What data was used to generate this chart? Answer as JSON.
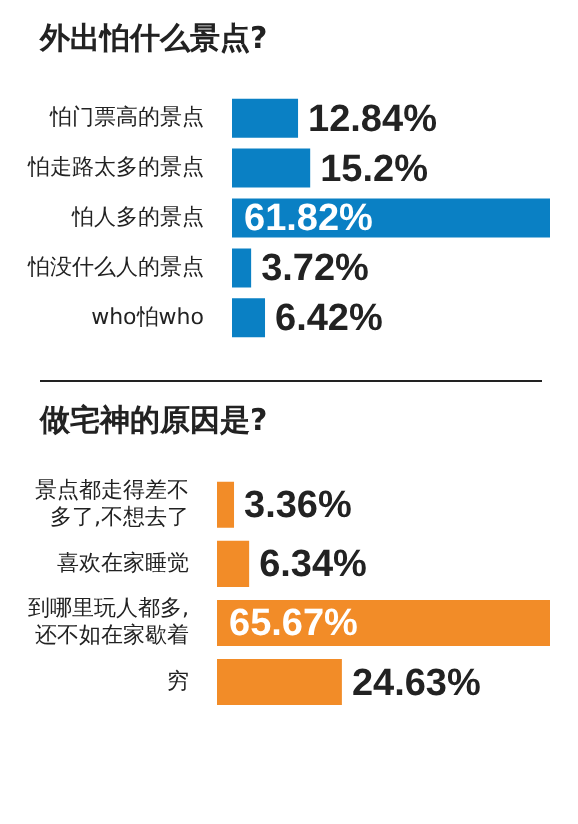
{
  "chart_data": [
    {
      "type": "bar",
      "orientation": "horizontal",
      "title": "外出怕什么景点?",
      "categories": [
        "怕门票高的景点",
        "怕走路太多的景点",
        "怕人多的景点",
        "怕没什么人的景点",
        "who怕who"
      ],
      "values": [
        12.84,
        15.2,
        61.82,
        3.72,
        6.42
      ],
      "value_labels": [
        "12.84%",
        "15.2%",
        "61.82%",
        "3.72%",
        "6.42%"
      ],
      "color": "#0a80c4"
    },
    {
      "type": "bar",
      "orientation": "horizontal",
      "title": "做宅神的原因是?",
      "categories": [
        "景点都走得差不多了,不想去了",
        "喜欢在家睡觉",
        "到哪里玩人都多,还不如在家歇着",
        "穷"
      ],
      "values": [
        3.36,
        6.34,
        65.67,
        24.63
      ],
      "value_labels": [
        "3.36%",
        "6.34%",
        "65.67%",
        "24.63%"
      ],
      "color": "#f28c28"
    }
  ]
}
